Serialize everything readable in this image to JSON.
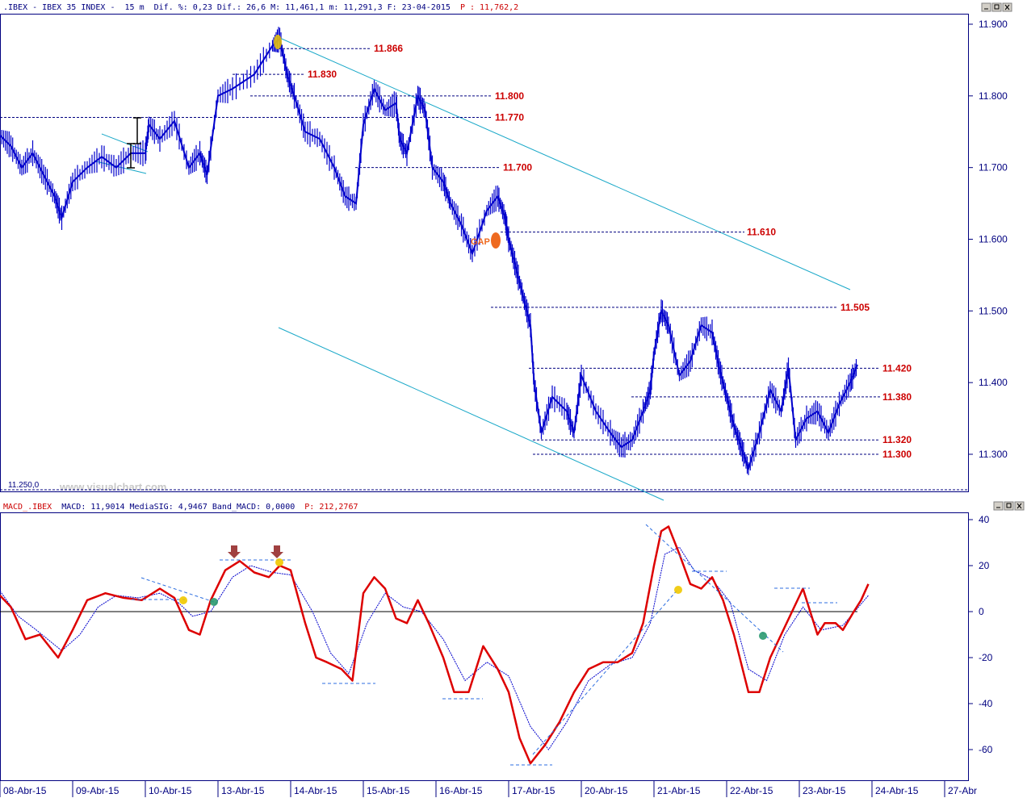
{
  "header": {
    "symbol": ".IBEX - IBEX 35 INDEX -",
    "interval": "15 m",
    "stats": "Dif. %: 0,23 Dif.: 26,6 M: 11,461,1 m: 11,291,3 F: 23-04-2015",
    "last_price": "P : 11,762,2"
  },
  "macd_header": {
    "label": "MACD_.IBEX",
    "values": "MACD: 11,9014 MediaSIG: 4,9467 Band_MACD: 0,0000",
    "last": "P: 212,2767"
  },
  "watermark": "www.visualchart.com",
  "base_label": "11.250,0",
  "gap_label": "GAP",
  "colors": {
    "price": "#0000cc",
    "macd": "#dd0000",
    "signal": "#0000cc",
    "trend": "#19a8c8",
    "level": "#cc0000",
    "grid": "#000080"
  },
  "chart_data": [
    {
      "type": "line",
      "title": "IBEX 35 INDEX 15 m",
      "x": [
        "08-Abr-15",
        "09-Abr-15",
        "10-Abr-15",
        "13-Abr-15",
        "14-Abr-15",
        "15-Abr-15",
        "16-Abr-15",
        "17-Abr-15",
        "20-Abr-15",
        "21-Abr-15",
        "22-Abr-15",
        "23-Abr-15",
        "24-Abr-15",
        "27-Abr"
      ],
      "ylim": [
        11250,
        11900
      ],
      "yticks": [
        11900,
        11800,
        11700,
        11600,
        11500,
        11400,
        11300
      ],
      "ytick_labels": [
        "11.900",
        "11.800",
        "11.700",
        "11.600",
        "11.500",
        "11.400",
        "11.300"
      ],
      "levels": [
        {
          "value": 11866,
          "label": "11.866"
        },
        {
          "value": 11830,
          "label": "11.830"
        },
        {
          "value": 11800,
          "label": "11.800"
        },
        {
          "value": 11770,
          "label": "11.770"
        },
        {
          "value": 11700,
          "label": "11.700"
        },
        {
          "value": 11610,
          "label": "11.610"
        },
        {
          "value": 11505,
          "label": "11.505"
        },
        {
          "value": 11420,
          "label": "11.420"
        },
        {
          "value": 11380,
          "label": "11.380"
        },
        {
          "value": 11320,
          "label": "11.320"
        },
        {
          "value": 11300,
          "label": "11.300"
        }
      ],
      "series": [
        {
          "name": "",
          "points": [
            [
              0.0,
              11745
            ],
            [
              0.15,
              11730
            ],
            [
              0.3,
              11700
            ],
            [
              0.45,
              11720
            ],
            [
              0.6,
              11690
            ],
            [
              0.75,
              11660
            ],
            [
              0.85,
              11630
            ],
            [
              1.0,
              11680
            ],
            [
              1.2,
              11700
            ],
            [
              1.4,
              11715
            ],
            [
              1.6,
              11700
            ],
            [
              1.8,
              11720
            ],
            [
              2.0,
              11720
            ],
            [
              2.05,
              11760
            ],
            [
              2.2,
              11740
            ],
            [
              2.4,
              11765
            ],
            [
              2.6,
              11700
            ],
            [
              2.75,
              11720
            ],
            [
              2.85,
              11690
            ],
            [
              3.0,
              11800
            ],
            [
              3.2,
              11810
            ],
            [
              3.5,
              11830
            ],
            [
              3.75,
              11870
            ],
            [
              3.85,
              11880
            ],
            [
              3.95,
              11830
            ],
            [
              4.05,
              11800
            ],
            [
              4.2,
              11750
            ],
            [
              4.4,
              11740
            ],
            [
              4.6,
              11700
            ],
            [
              4.75,
              11660
            ],
            [
              4.9,
              11650
            ],
            [
              5.0,
              11760
            ],
            [
              5.15,
              11810
            ],
            [
              5.3,
              11780
            ],
            [
              5.45,
              11790
            ],
            [
              5.5,
              11740
            ],
            [
              5.6,
              11720
            ],
            [
              5.75,
              11800
            ],
            [
              5.85,
              11780
            ],
            [
              5.95,
              11700
            ],
            [
              6.1,
              11680
            ],
            [
              6.2,
              11650
            ],
            [
              6.35,
              11620
            ],
            [
              6.5,
              11580
            ],
            [
              6.7,
              11640
            ],
            [
              6.85,
              11660
            ],
            [
              6.95,
              11630
            ],
            [
              7.0,
              11600
            ],
            [
              7.1,
              11560
            ],
            [
              7.2,
              11520
            ],
            [
              7.3,
              11480
            ],
            [
              7.35,
              11400
            ],
            [
              7.45,
              11330
            ],
            [
              7.6,
              11380
            ],
            [
              7.8,
              11360
            ],
            [
              7.9,
              11330
            ],
            [
              8.0,
              11410
            ],
            [
              8.2,
              11360
            ],
            [
              8.4,
              11330
            ],
            [
              8.55,
              11310
            ],
            [
              8.7,
              11320
            ],
            [
              8.85,
              11360
            ],
            [
              8.95,
              11390
            ],
            [
              9.0,
              11440
            ],
            [
              9.1,
              11500
            ],
            [
              9.2,
              11480
            ],
            [
              9.35,
              11410
            ],
            [
              9.5,
              11430
            ],
            [
              9.65,
              11480
            ],
            [
              9.8,
              11470
            ],
            [
              9.9,
              11420
            ],
            [
              10.0,
              11380
            ],
            [
              10.1,
              11340
            ],
            [
              10.2,
              11310
            ],
            [
              10.3,
              11280
            ],
            [
              10.45,
              11330
            ],
            [
              10.6,
              11390
            ],
            [
              10.75,
              11360
            ],
            [
              10.85,
              11420
            ],
            [
              10.95,
              11320
            ],
            [
              11.1,
              11350
            ],
            [
              11.25,
              11360
            ],
            [
              11.4,
              11330
            ],
            [
              11.55,
              11370
            ],
            [
              11.7,
              11400
            ],
            [
              11.8,
              11425
            ]
          ]
        }
      ]
    },
    {
      "type": "line",
      "title": "MACD",
      "x": [
        "08-Abr-15",
        "09-Abr-15",
        "10-Abr-15",
        "13-Abr-15",
        "14-Abr-15",
        "15-Abr-15",
        "16-Abr-15",
        "17-Abr-15",
        "20-Abr-15",
        "21-Abr-15",
        "22-Abr-15",
        "23-Abr-15",
        "24-Abr-15",
        "27-Abr"
      ],
      "ylim": [
        -74,
        40
      ],
      "yticks": [
        40,
        20,
        0,
        -20,
        -40,
        -60
      ],
      "series": [
        {
          "name": "MACD",
          "points": [
            [
              0.0,
              7
            ],
            [
              0.15,
              2
            ],
            [
              0.35,
              -12
            ],
            [
              0.55,
              -10
            ],
            [
              0.8,
              -20
            ],
            [
              1.0,
              -8
            ],
            [
              1.2,
              5
            ],
            [
              1.45,
              8
            ],
            [
              1.7,
              6
            ],
            [
              1.95,
              5
            ],
            [
              2.2,
              10
            ],
            [
              2.4,
              6
            ],
            [
              2.6,
              -8
            ],
            [
              2.75,
              -10
            ],
            [
              2.9,
              5
            ],
            [
              3.1,
              18
            ],
            [
              3.3,
              22
            ],
            [
              3.5,
              17
            ],
            [
              3.7,
              15
            ],
            [
              3.85,
              20
            ],
            [
              4.0,
              18
            ],
            [
              4.2,
              -5
            ],
            [
              4.35,
              -20
            ],
            [
              4.5,
              -22
            ],
            [
              4.7,
              -25
            ],
            [
              4.85,
              -30
            ],
            [
              5.0,
              8
            ],
            [
              5.15,
              15
            ],
            [
              5.3,
              10
            ],
            [
              5.45,
              -3
            ],
            [
              5.6,
              -5
            ],
            [
              5.75,
              5
            ],
            [
              5.9,
              -5
            ],
            [
              6.1,
              -20
            ],
            [
              6.25,
              -35
            ],
            [
              6.45,
              -35
            ],
            [
              6.65,
              -15
            ],
            [
              6.85,
              -25
            ],
            [
              7.0,
              -35
            ],
            [
              7.15,
              -55
            ],
            [
              7.3,
              -66
            ],
            [
              7.5,
              -58
            ],
            [
              7.7,
              -48
            ],
            [
              7.9,
              -35
            ],
            [
              8.1,
              -25
            ],
            [
              8.3,
              -22
            ],
            [
              8.5,
              -22
            ],
            [
              8.7,
              -18
            ],
            [
              8.85,
              -5
            ],
            [
              9.0,
              20
            ],
            [
              9.1,
              35
            ],
            [
              9.2,
              37
            ],
            [
              9.35,
              25
            ],
            [
              9.5,
              12
            ],
            [
              9.65,
              10
            ],
            [
              9.8,
              15
            ],
            [
              9.95,
              5
            ],
            [
              10.1,
              -10
            ],
            [
              10.3,
              -35
            ],
            [
              10.45,
              -35
            ],
            [
              10.6,
              -20
            ],
            [
              10.75,
              -10
            ],
            [
              10.9,
              0
            ],
            [
              11.05,
              10
            ],
            [
              11.15,
              0
            ],
            [
              11.25,
              -10
            ],
            [
              11.35,
              -5
            ],
            [
              11.5,
              -5
            ],
            [
              11.6,
              -8
            ],
            [
              11.75,
              0
            ],
            [
              11.85,
              5
            ],
            [
              11.95,
              12
            ]
          ]
        },
        {
          "name": "MediaSIG",
          "points": [
            [
              0.0,
              9
            ],
            [
              0.25,
              -2
            ],
            [
              0.5,
              -8
            ],
            [
              0.85,
              -17
            ],
            [
              1.1,
              -10
            ],
            [
              1.35,
              2
            ],
            [
              1.6,
              7
            ],
            [
              1.9,
              6
            ],
            [
              2.2,
              8
            ],
            [
              2.45,
              4
            ],
            [
              2.65,
              -2
            ],
            [
              2.9,
              0
            ],
            [
              3.2,
              15
            ],
            [
              3.45,
              20
            ],
            [
              3.75,
              17
            ],
            [
              4.0,
              16
            ],
            [
              4.3,
              0
            ],
            [
              4.55,
              -18
            ],
            [
              4.8,
              -27
            ],
            [
              5.05,
              -5
            ],
            [
              5.3,
              8
            ],
            [
              5.55,
              2
            ],
            [
              5.8,
              0
            ],
            [
              6.1,
              -12
            ],
            [
              6.4,
              -30
            ],
            [
              6.7,
              -22
            ],
            [
              7.0,
              -28
            ],
            [
              7.3,
              -50
            ],
            [
              7.55,
              -60
            ],
            [
              7.8,
              -48
            ],
            [
              8.1,
              -30
            ],
            [
              8.4,
              -23
            ],
            [
              8.7,
              -20
            ],
            [
              8.95,
              -5
            ],
            [
              9.15,
              25
            ],
            [
              9.35,
              28
            ],
            [
              9.55,
              18
            ],
            [
              9.8,
              14
            ],
            [
              10.05,
              4
            ],
            [
              10.3,
              -25
            ],
            [
              10.55,
              -30
            ],
            [
              10.8,
              -10
            ],
            [
              11.05,
              2
            ],
            [
              11.3,
              -8
            ],
            [
              11.6,
              -6
            ],
            [
              11.95,
              7
            ]
          ]
        }
      ]
    }
  ]
}
